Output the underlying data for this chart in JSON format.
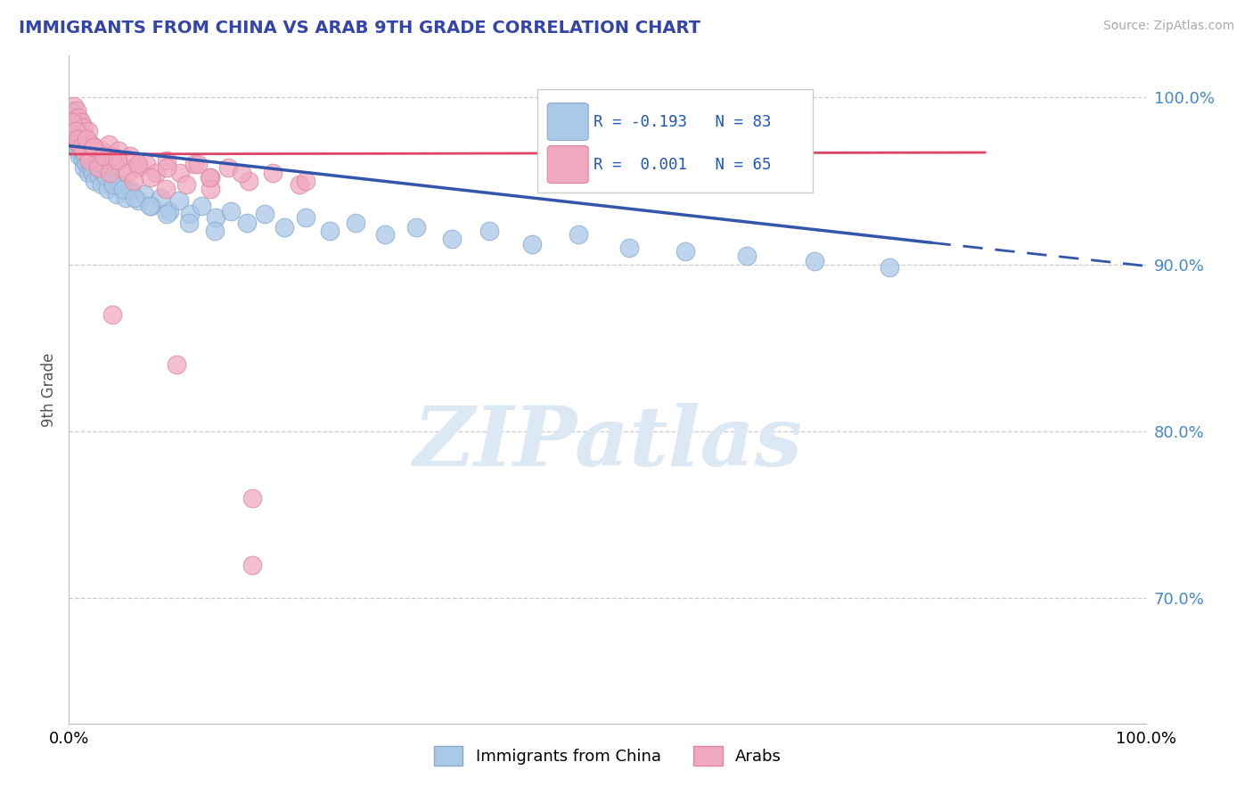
{
  "title": "IMMIGRANTS FROM CHINA VS ARAB 9TH GRADE CORRELATION CHART",
  "source": "Source: ZipAtlas.com",
  "ylabel": "9th Grade",
  "ytick_values": [
    0.7,
    0.8,
    0.9,
    1.0
  ],
  "xlim": [
    0.0,
    1.0
  ],
  "ylim": [
    0.625,
    1.025
  ],
  "china_color": "#aac8e8",
  "arab_color": "#f0a8c0",
  "china_edge": "#88aacc",
  "arab_edge": "#dd8899",
  "trend_china_color": "#3355aa",
  "trend_arab_color": "#dd4466",
  "legend_R_china": "R = -0.193",
  "legend_N_china": "N = 83",
  "legend_R_arab": "R =  0.001",
  "legend_N_arab": "N = 65",
  "watermark": "ZIPatlas",
  "china_x": [
    0.002,
    0.003,
    0.004,
    0.004,
    0.005,
    0.005,
    0.006,
    0.006,
    0.007,
    0.007,
    0.008,
    0.008,
    0.009,
    0.009,
    0.01,
    0.01,
    0.011,
    0.012,
    0.013,
    0.014,
    0.015,
    0.016,
    0.017,
    0.018,
    0.019,
    0.02,
    0.022,
    0.024,
    0.026,
    0.028,
    0.03,
    0.033,
    0.036,
    0.04,
    0.044,
    0.048,
    0.053,
    0.058,
    0.064,
    0.07,
    0.077,
    0.085,
    0.093,
    0.102,
    0.112,
    0.123,
    0.136,
    0.15,
    0.165,
    0.182,
    0.2,
    0.22,
    0.242,
    0.266,
    0.293,
    0.322,
    0.355,
    0.39,
    0.43,
    0.473,
    0.52,
    0.572,
    0.629,
    0.692,
    0.761,
    0.003,
    0.005,
    0.007,
    0.009,
    0.011,
    0.013,
    0.016,
    0.019,
    0.023,
    0.028,
    0.034,
    0.041,
    0.05,
    0.061,
    0.075,
    0.091,
    0.111,
    0.135
  ],
  "china_y": [
    0.98,
    0.985,
    0.975,
    0.99,
    0.983,
    0.972,
    0.978,
    0.988,
    0.975,
    0.982,
    0.97,
    0.977,
    0.974,
    0.968,
    0.972,
    0.965,
    0.97,
    0.968,
    0.963,
    0.958,
    0.965,
    0.96,
    0.972,
    0.955,
    0.962,
    0.958,
    0.955,
    0.95,
    0.96,
    0.953,
    0.948,
    0.955,
    0.945,
    0.95,
    0.942,
    0.948,
    0.94,
    0.944,
    0.938,
    0.942,
    0.935,
    0.94,
    0.932,
    0.938,
    0.93,
    0.935,
    0.928,
    0.932,
    0.925,
    0.93,
    0.922,
    0.928,
    0.92,
    0.925,
    0.918,
    0.922,
    0.915,
    0.92,
    0.912,
    0.918,
    0.91,
    0.908,
    0.905,
    0.902,
    0.898,
    0.992,
    0.988,
    0.985,
    0.982,
    0.978,
    0.975,
    0.97,
    0.967,
    0.962,
    0.958,
    0.953,
    0.948,
    0.945,
    0.94,
    0.935,
    0.93,
    0.925,
    0.92
  ],
  "arab_x": [
    0.002,
    0.004,
    0.005,
    0.006,
    0.007,
    0.008,
    0.009,
    0.01,
    0.011,
    0.012,
    0.013,
    0.014,
    0.015,
    0.017,
    0.018,
    0.02,
    0.022,
    0.024,
    0.027,
    0.03,
    0.033,
    0.037,
    0.041,
    0.046,
    0.051,
    0.057,
    0.064,
    0.072,
    0.081,
    0.091,
    0.103,
    0.116,
    0.131,
    0.148,
    0.167,
    0.189,
    0.214,
    0.003,
    0.006,
    0.008,
    0.011,
    0.014,
    0.016,
    0.019,
    0.023,
    0.027,
    0.032,
    0.038,
    0.045,
    0.054,
    0.064,
    0.076,
    0.091,
    0.109,
    0.131,
    0.04,
    0.06,
    0.09,
    0.12,
    0.16,
    0.1,
    0.13,
    0.17,
    0.22,
    0.17
  ],
  "arab_y": [
    0.988,
    0.982,
    0.995,
    0.978,
    0.992,
    0.975,
    0.988,
    0.972,
    0.985,
    0.978,
    0.97,
    0.982,
    0.975,
    0.968,
    0.98,
    0.972,
    0.965,
    0.97,
    0.962,
    0.968,
    0.96,
    0.972,
    0.965,
    0.968,
    0.958,
    0.965,
    0.958,
    0.96,
    0.955,
    0.962,
    0.955,
    0.96,
    0.952,
    0.958,
    0.95,
    0.955,
    0.948,
    0.985,
    0.98,
    0.975,
    0.97,
    0.968,
    0.975,
    0.962,
    0.97,
    0.958,
    0.965,
    0.955,
    0.962,
    0.955,
    0.96,
    0.952,
    0.958,
    0.948,
    0.945,
    0.87,
    0.95,
    0.945,
    0.96,
    0.955,
    0.84,
    0.952,
    0.76,
    0.95,
    0.72
  ],
  "china_trend_x0": 0.0,
  "china_trend_y0": 0.971,
  "china_trend_x1": 0.8,
  "china_trend_y1": 0.913,
  "china_trend_xd0": 0.8,
  "china_trend_yd0": 0.913,
  "china_trend_xd1": 1.0,
  "china_trend_yd1": 0.899,
  "arab_trend_x0": 0.0,
  "arab_trend_y0": 0.966,
  "arab_trend_x1": 0.85,
  "arab_trend_y1": 0.967
}
